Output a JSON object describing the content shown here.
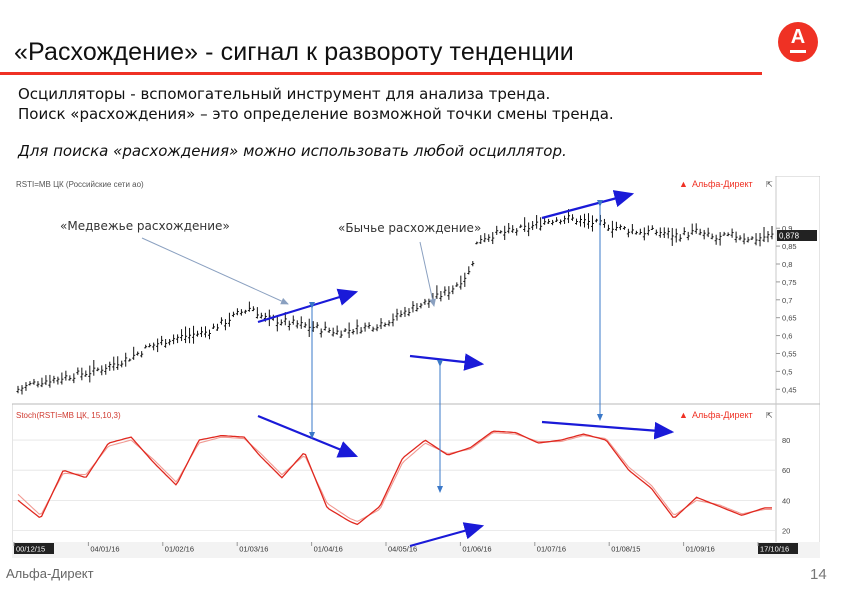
{
  "slide": {
    "title": "«Расхождение» - сигнал к развороту тенденции",
    "intro_lines": [
      "Осцилляторы - вспомогательный инструмент для  анализа тренда.",
      "Поиск «расхождения» – это определение возможной точки смены тренда."
    ],
    "note": "Для поиска «расхождения» можно использовать любой осциллятор.",
    "logo_letter": "A",
    "footer_brand": "Альфа-Директ",
    "page_number": "14"
  },
  "colors": {
    "accent": "#ef3124",
    "arrow": "#1a1ad8",
    "marker": "#3a78c8",
    "price_bars": "#111111",
    "oscillator": "#e0281f"
  },
  "annotations": {
    "bearish": "«Медвежье расхождение»",
    "bullish": "«Бычье расхождение»"
  },
  "chart_data": [
    {
      "type": "line",
      "title": "RSTI=MB ЦК (Российские сети ао)",
      "brand": "Альфа-Директ",
      "last_value_label": "0,878",
      "ylim": [
        0.42,
        0.99
      ],
      "yticks": [
        "0,9",
        "0,85",
        "0,8",
        "0,75",
        "0,7",
        "0,65",
        "0,6",
        "0,55",
        "0,5",
        "0,45"
      ],
      "x": [
        0,
        5,
        10,
        15,
        20,
        25,
        30,
        35,
        40,
        45,
        50,
        55,
        60,
        62,
        65,
        70,
        75,
        80,
        85,
        90,
        95,
        100,
        105,
        110,
        115,
        120,
        122,
        125,
        130,
        135,
        140,
        145,
        150,
        155,
        160,
        165,
        170,
        175,
        180,
        185,
        190,
        195,
        200
      ],
      "close": [
        0.45,
        0.47,
        0.48,
        0.49,
        0.5,
        0.52,
        0.54,
        0.57,
        0.59,
        0.6,
        0.61,
        0.64,
        0.67,
        0.68,
        0.65,
        0.64,
        0.63,
        0.62,
        0.61,
        0.62,
        0.63,
        0.65,
        0.68,
        0.7,
        0.73,
        0.78,
        0.87,
        0.88,
        0.89,
        0.9,
        0.92,
        0.93,
        0.92,
        0.91,
        0.9,
        0.89,
        0.89,
        0.88,
        0.89,
        0.87,
        0.88,
        0.87,
        0.88
      ]
    },
    {
      "type": "line",
      "title": "Stoch(RSTI=MB ЦК, 15,10,3)",
      "brand": "Альфа-Директ",
      "ylim": [
        15,
        92
      ],
      "yticks": [
        "80",
        "60",
        "40",
        "20"
      ],
      "xticks": [
        "00/12/15",
        "04/01/16",
        "01/02/16",
        "01/03/16",
        "01/04/16",
        "04/05/16",
        "01/06/16",
        "01/07/16",
        "01/08/15",
        "01/09/16",
        "17/10/16"
      ],
      "x": [
        0,
        6,
        12,
        18,
        24,
        30,
        36,
        42,
        48,
        54,
        60,
        64,
        70,
        76,
        82,
        88,
        90,
        96,
        102,
        108,
        114,
        120,
        126,
        132,
        138,
        144,
        150,
        156,
        162,
        168,
        174,
        180,
        186,
        192,
        198
      ],
      "k": [
        40,
        28,
        60,
        55,
        78,
        82,
        65,
        50,
        80,
        83,
        82,
        70,
        55,
        72,
        35,
        26,
        24,
        36,
        68,
        80,
        70,
        75,
        86,
        85,
        78,
        80,
        84,
        80,
        60,
        48,
        28,
        42,
        36,
        30,
        35
      ],
      "d": [
        44,
        30,
        58,
        57,
        76,
        80,
        67,
        52,
        78,
        82,
        81,
        72,
        57,
        70,
        38,
        28,
        26,
        34,
        65,
        78,
        71,
        74,
        85,
        84,
        79,
        79,
        83,
        81,
        62,
        50,
        30,
        40,
        37,
        31,
        34
      ]
    }
  ]
}
